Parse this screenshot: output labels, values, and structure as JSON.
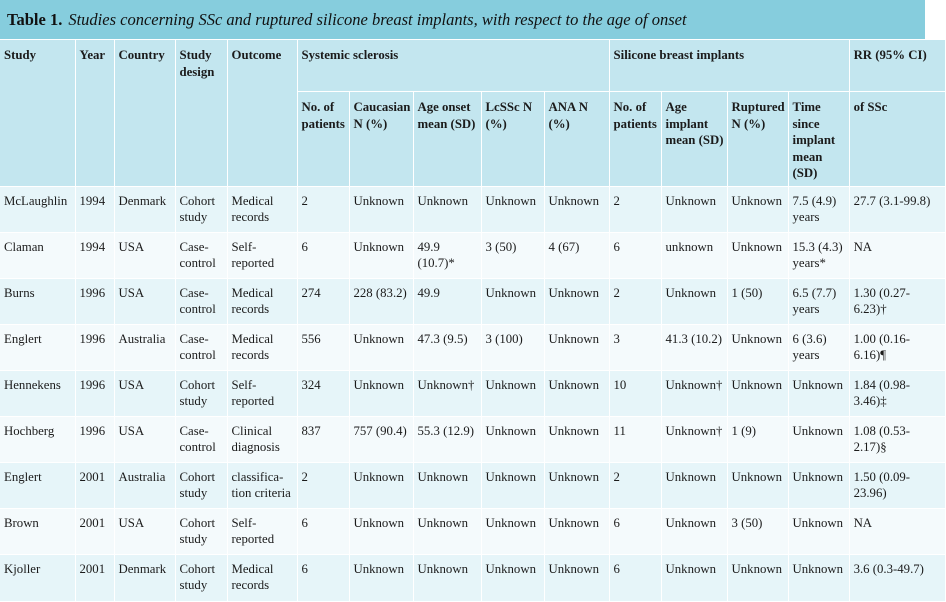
{
  "caption": {
    "label": "Table 1.",
    "text": "Studies concerning SSc and ruptured silicone breast implants, with respect to the age of onset"
  },
  "headers": {
    "study": "Study",
    "year": "Year",
    "country": "Country",
    "design": "Study design",
    "outcome": "Outcome",
    "ssc_group": "Systemic sclerosis",
    "sbi_group": "Silicone breast implants",
    "rr": "RR (95% CI)",
    "ssc_patients": "No. of patients",
    "caucasian": "Caucasian N (%)",
    "age_onset": "Age onset mean (SD)",
    "lcssc": "LcSSc N (%)",
    "ana": "ANA N (%)",
    "sbi_patients": "No. of patients",
    "age_implant": "Age implant mean (SD)",
    "ruptured": "Ruptured N (%)",
    "time_since": "Time since implant mean (SD)",
    "of_ssc": "of SSc"
  },
  "rows": [
    [
      "McLaughlin",
      "1994",
      "Denmark",
      "Cohort study",
      "Medical records",
      "2",
      "Unknown",
      "Unknown",
      "Unknown",
      "Unknown",
      "2",
      "Unknown",
      "Unknown",
      "7.5 (4.9) years",
      "27.7 (3.1-99.8)"
    ],
    [
      "Claman",
      "1994",
      "USA",
      "Case-control",
      "Self-reported",
      "6",
      "Unknown",
      "49.9 (10.7)*",
      "3 (50)",
      "4 (67)",
      "6",
      "unknown",
      "Unknown",
      "15.3 (4.3) years*",
      "NA"
    ],
    [
      "Burns",
      "1996",
      "USA",
      "Case-control",
      "Medical records",
      "274",
      "228 (83.2)",
      "49.9",
      "Unknown",
      "Unknown",
      "2",
      "Unknown",
      "1 (50)",
      "6.5 (7.7) years",
      "1.30 (0.27-6.23)†"
    ],
    [
      "Englert",
      "1996",
      "Australia",
      "Case-control",
      "Medical records",
      "556",
      "Unknown",
      "47.3 (9.5)",
      "3 (100)",
      "Unknown",
      "3",
      "41.3 (10.2)",
      "Unknown",
      "6 (3.6) years",
      "1.00 (0.16-6.16)¶"
    ],
    [
      "Hennekens",
      "1996",
      "USA",
      "Cohort study",
      "Self-reported",
      "324",
      "Unknown",
      "Unknown†",
      "Unknown",
      "Unknown",
      "10",
      "Unknown†",
      "Unknown",
      "Unknown",
      "1.84 (0.98-3.46)‡"
    ],
    [
      "Hochberg",
      "1996",
      "USA",
      "Case-control",
      "Clinical diagnosis",
      "837",
      "757 (90.4)",
      "55.3 (12.9)",
      "Unknown",
      "Unknown",
      "11",
      "Unknown†",
      "1 (9)",
      "Unknown",
      "1.08 (0.53-2.17)§"
    ],
    [
      "Englert",
      "2001",
      "Australia",
      "Cohort study",
      "classifica-tion criteria",
      "2",
      "Unknown",
      "Unknown",
      "Unknown",
      "Unknown",
      "2",
      "Unknown",
      "Unknown",
      "Unknown",
      "1.50 (0.09-23.96)"
    ],
    [
      "Brown",
      "2001",
      "USA",
      "Cohort study",
      "Self-reported",
      "6",
      "Unknown",
      "Unknown",
      "Unknown",
      "Unknown",
      "6",
      "Unknown",
      "3 (50)",
      "Unknown",
      "NA"
    ],
    [
      "Kjoller",
      "2001",
      "Denmark",
      "Cohort study",
      "Medical records",
      "6",
      "Unknown",
      "Unknown",
      "Unknown",
      "Unknown",
      "6",
      "Unknown",
      "Unknown",
      "Unknown",
      "3.6 (0.3-49.7)"
    ]
  ],
  "colors": {
    "title_bg": "#86cddd",
    "header_bg": "#c3e6ef",
    "row_odd_bg": "#e6f5f9",
    "row_even_bg": "#f4fafc"
  }
}
